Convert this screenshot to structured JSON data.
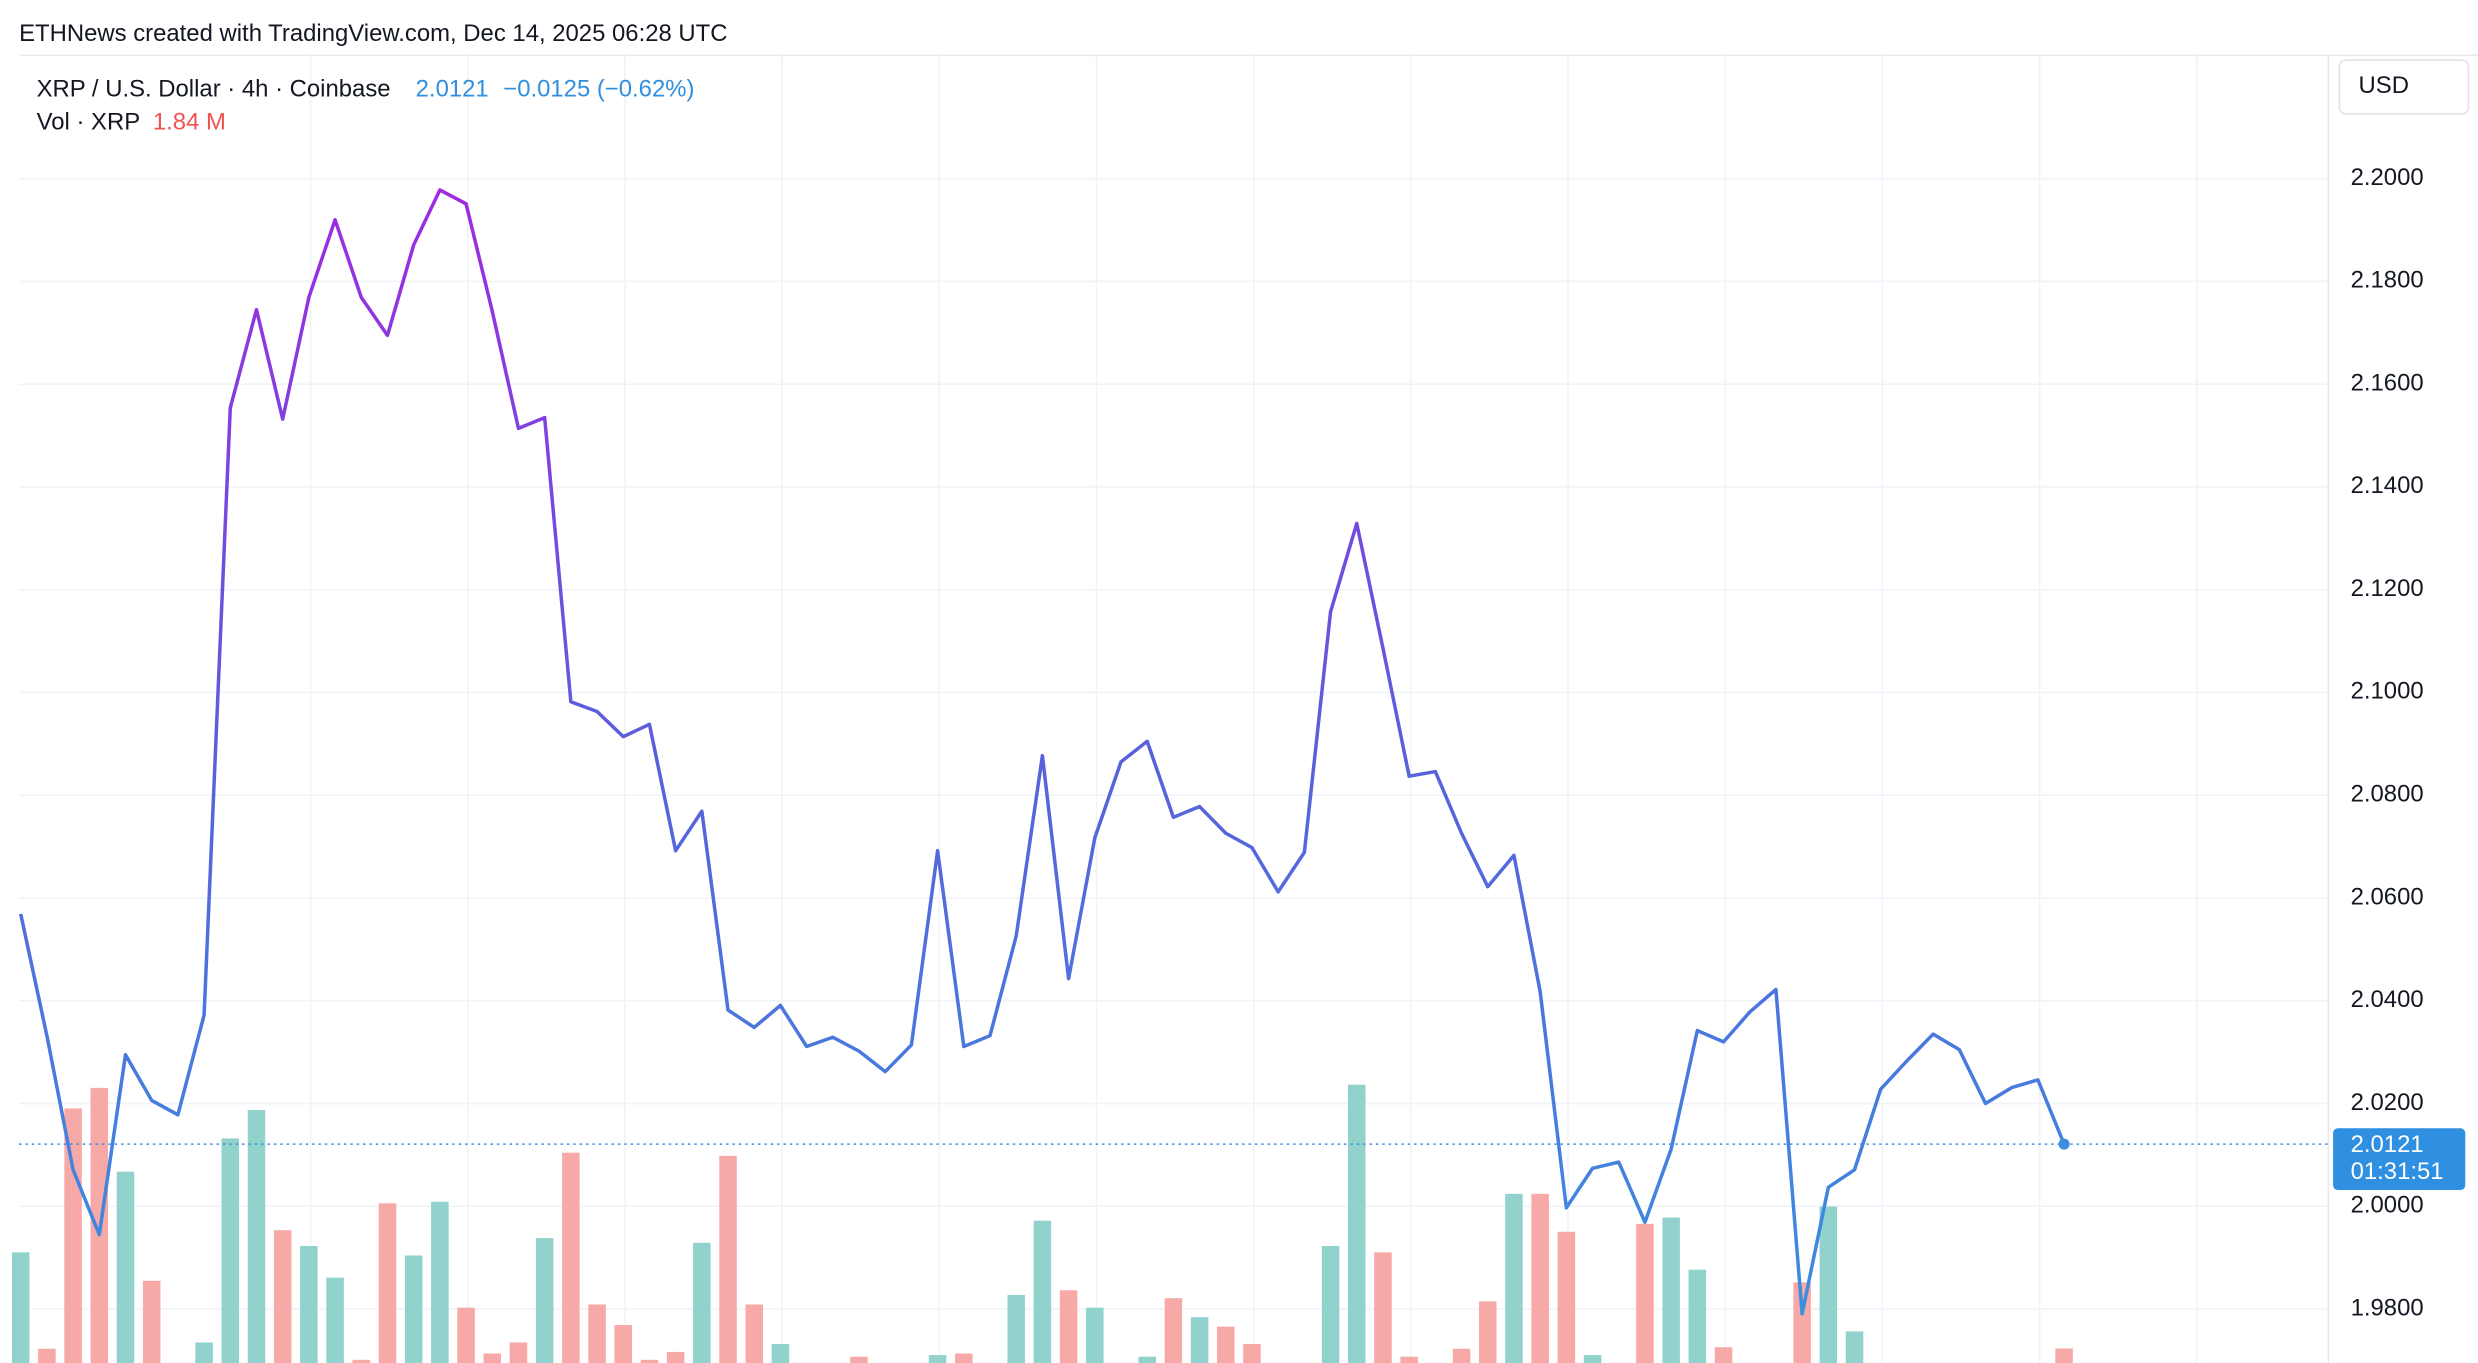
{
  "header": "ETHNews created with TradingView.com, Dec 14, 2025 06:28 UTC",
  "legend": {
    "symbol": "XRP / U.S. Dollar · 4h · Coinbase",
    "price": "2.0121",
    "change": "−0.0125 (−0.62%)",
    "volume_label": "Vol · XRP",
    "volume_value": "1.84 M"
  },
  "currency": "USD",
  "chart_data": {
    "type": "line",
    "series": [
      {
        "values": [
          2.0569,
          2.0332,
          2.0071,
          1.9945,
          2.0295,
          2.0206,
          2.0178,
          2.0372,
          2.1554,
          2.1745,
          2.1532,
          2.1769,
          2.192,
          2.1769,
          2.1695,
          2.1871,
          2.1978,
          2.1951,
          2.1742,
          2.1514,
          2.1535,
          2.0982,
          2.0963,
          2.0914,
          2.0938,
          2.0692,
          2.0769,
          2.0382,
          2.0348,
          2.0391,
          2.0311,
          2.0329,
          2.0302,
          2.0262,
          2.0314,
          2.0692,
          2.0311,
          2.0332,
          2.0526,
          2.0877,
          2.0443,
          2.0717,
          2.0865,
          2.0905,
          2.0757,
          2.0778,
          2.0726,
          2.0698,
          2.0612,
          2.0689,
          2.1157,
          2.1329,
          2.1086,
          2.0837,
          2.0846,
          2.0726,
          2.0622,
          2.0683,
          2.0418,
          1.9997,
          2.0074,
          2.0086,
          1.9969,
          2.0111,
          2.0342,
          2.032,
          2.0378,
          2.0422,
          1.9791,
          2.0037,
          2.0071,
          2.0228,
          2.0283,
          2.0335,
          2.0305,
          2.02,
          2.0231,
          2.0246,
          2.0121
        ],
        "colors": [
          "#a128e3",
          "#5a5fdc",
          "#3b8ee0"
        ]
      }
    ],
    "volume": {
      "values": [
        14,
        1.8,
        32.2,
        34.8,
        24.2,
        10.4,
        0,
        2.6,
        28.4,
        32,
        16.8,
        14.8,
        10.8,
        0.4,
        20.2,
        13.6,
        20.4,
        7,
        1.2,
        2.6,
        15.8,
        26.6,
        7.4,
        4.8,
        0.4,
        1.4,
        15.2,
        26.2,
        7.4,
        2.4,
        0,
        0,
        0.8,
        0,
        0,
        1,
        1.2,
        0,
        8.6,
        18,
        9.2,
        7,
        0,
        0.8,
        8.2,
        5.8,
        4.6,
        2.4,
        0,
        0,
        14.8,
        35.2,
        14,
        0.8,
        0,
        1.8,
        7.8,
        21.4,
        21.4,
        16.6,
        1,
        0,
        17.6,
        18.4,
        11.8,
        2,
        0,
        0,
        10.2,
        19.8,
        4,
        0,
        0,
        0,
        0,
        0,
        0,
        0,
        1.84
      ],
      "colors": [
        "#92d2cc",
        "#f7a9a7",
        "#f7a9a7",
        "#f7a9a7",
        "#92d2cc",
        "#f7a9a7",
        "#f7a9a7",
        "#92d2cc",
        "#92d2cc",
        "#92d2cc",
        "#f7a9a7",
        "#92d2cc",
        "#92d2cc",
        "#f7a9a7",
        "#f7a9a7",
        "#92d2cc",
        "#92d2cc",
        "#f7a9a7",
        "#f7a9a7",
        "#f7a9a7",
        "#92d2cc",
        "#f7a9a7",
        "#f7a9a7",
        "#f7a9a7",
        "#f7a9a7",
        "#f7a9a7",
        "#92d2cc",
        "#f7a9a7",
        "#f7a9a7",
        "#92d2cc",
        "#f7a9a7",
        "#f7a9a7",
        "#f7a9a7",
        "#f7a9a7",
        "#f7a9a7",
        "#92d2cc",
        "#f7a9a7",
        "#f7a9a7",
        "#92d2cc",
        "#92d2cc",
        "#f7a9a7",
        "#92d2cc",
        "#f7a9a7",
        "#92d2cc",
        "#f7a9a7",
        "#92d2cc",
        "#f7a9a7",
        "#f7a9a7",
        "#f7a9a7",
        "#f7a9a7",
        "#92d2cc",
        "#92d2cc",
        "#f7a9a7",
        "#f7a9a7",
        "#f7a9a7",
        "#f7a9a7",
        "#f7a9a7",
        "#92d2cc",
        "#f7a9a7",
        "#f7a9a7",
        "#92d2cc",
        "#f7a9a7",
        "#f7a9a7",
        "#92d2cc",
        "#92d2cc",
        "#f7a9a7",
        "#f7a9a7",
        "#f7a9a7",
        "#f7a9a7",
        "#92d2cc",
        "#92d2cc",
        "#f7a9a7",
        "#f7a9a7",
        "#f7a9a7",
        "#f7a9a7",
        "#f7a9a7",
        "#f7a9a7",
        "#f7a9a7",
        "#f7a9a7"
      ],
      "lim": [
        0,
        165.4
      ]
    },
    "ylim": [
      1.9695,
      2.224
    ],
    "yticks": [
      {
        "value": 1.98,
        "label": "1.9800"
      },
      {
        "value": 2.0,
        "label": "2.0000"
      },
      {
        "value": 2.02,
        "label": "2.0200"
      },
      {
        "value": 2.04,
        "label": "2.0400"
      },
      {
        "value": 2.06,
        "label": "2.0600"
      },
      {
        "value": 2.08,
        "label": "2.0800"
      },
      {
        "value": 2.1,
        "label": "2.1000"
      },
      {
        "value": 2.12,
        "label": "2.1200"
      },
      {
        "value": 2.14,
        "label": "2.1400"
      },
      {
        "value": 2.16,
        "label": "2.1600"
      },
      {
        "value": 2.18,
        "label": "2.1800"
      },
      {
        "value": 2.2,
        "label": "2.2000"
      }
    ],
    "price_label": "2.0121",
    "countdown": "01:31:51",
    "grid": true
  }
}
